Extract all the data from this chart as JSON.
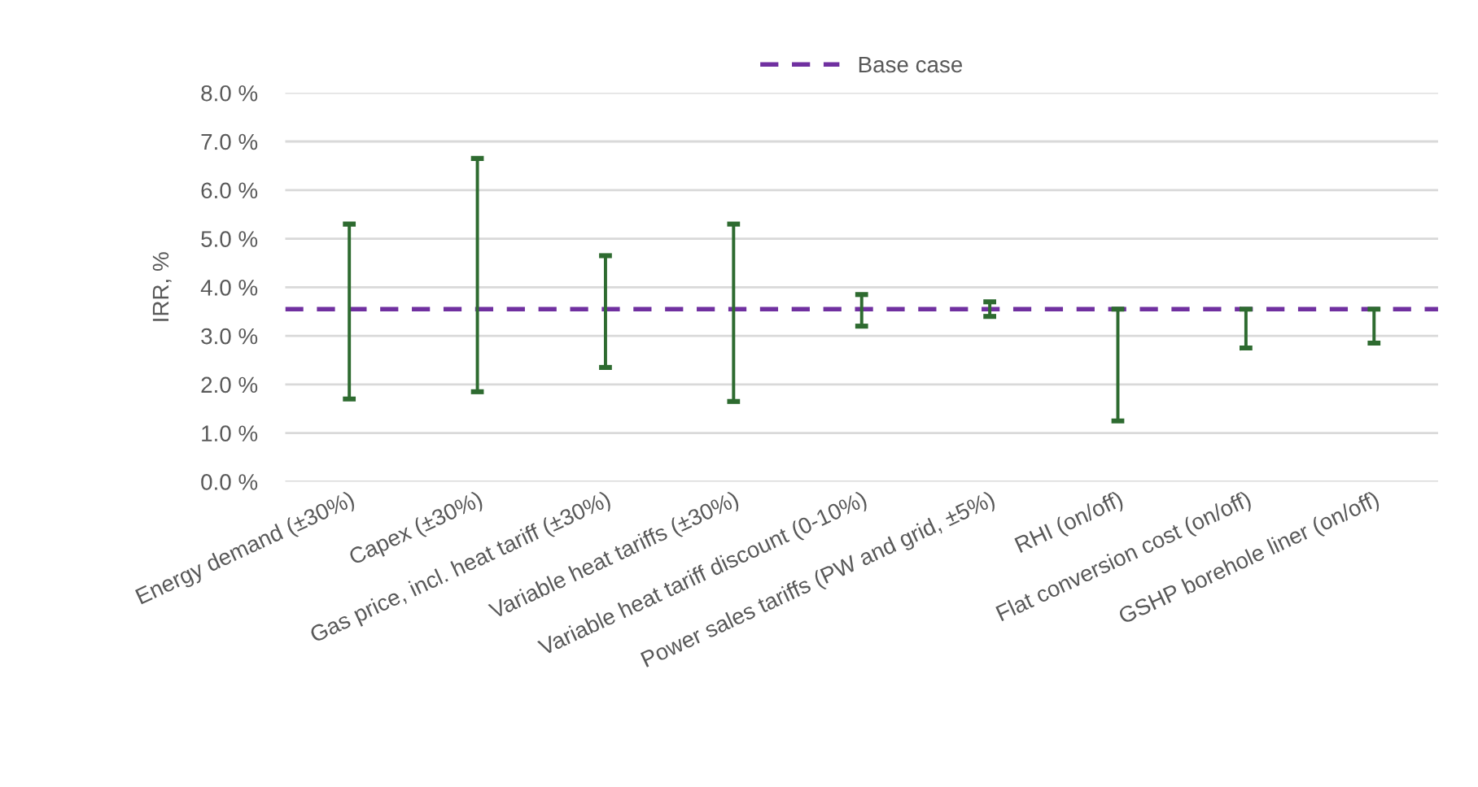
{
  "chart_data": {
    "type": "bar",
    "ylabel": "IRR, %",
    "categories": [
      "Energy demand (±30%)",
      "Capex (±30%)",
      "Gas price, incl. heat tariff (±30%)",
      "Variable heat tariffs (±30%)",
      "Variable heat tariff discount (0-10%)",
      "Power sales tariffs (PW and grid, ±5%)",
      "RHI (on/off)",
      "Flat conversion cost (on/off)",
      "GSHP borehole liner (on/off)"
    ],
    "base": [
      1.7,
      1.85,
      2.35,
      1.65,
      3.2,
      3.4,
      1.25,
      2.75,
      2.85
    ],
    "values": [
      3.6,
      4.8,
      2.3,
      3.65,
      0.65,
      0.3,
      2.3,
      0.8,
      0.7
    ],
    "color": "#2e6b30",
    "ylim": [
      0,
      8
    ],
    "yticks": [
      {
        "value": 0,
        "label": "0.0 %"
      },
      {
        "value": 1,
        "label": "1.0 %"
      },
      {
        "value": 2,
        "label": "2.0 %"
      },
      {
        "value": 3,
        "label": "3.0 %"
      },
      {
        "value": 4,
        "label": "4.0 %"
      },
      {
        "value": 5,
        "label": "5.0 %"
      },
      {
        "value": 6,
        "label": "6.0 %"
      },
      {
        "value": 7,
        "label": "7.0 %"
      },
      {
        "value": 8,
        "label": "8.0 %"
      }
    ],
    "grid": "y",
    "ref_lines": [
      {
        "axis": "y",
        "value": 3.55,
        "label": "Base case",
        "color": "#7030a0",
        "line_style": "dashed"
      }
    ],
    "legend": "top"
  }
}
